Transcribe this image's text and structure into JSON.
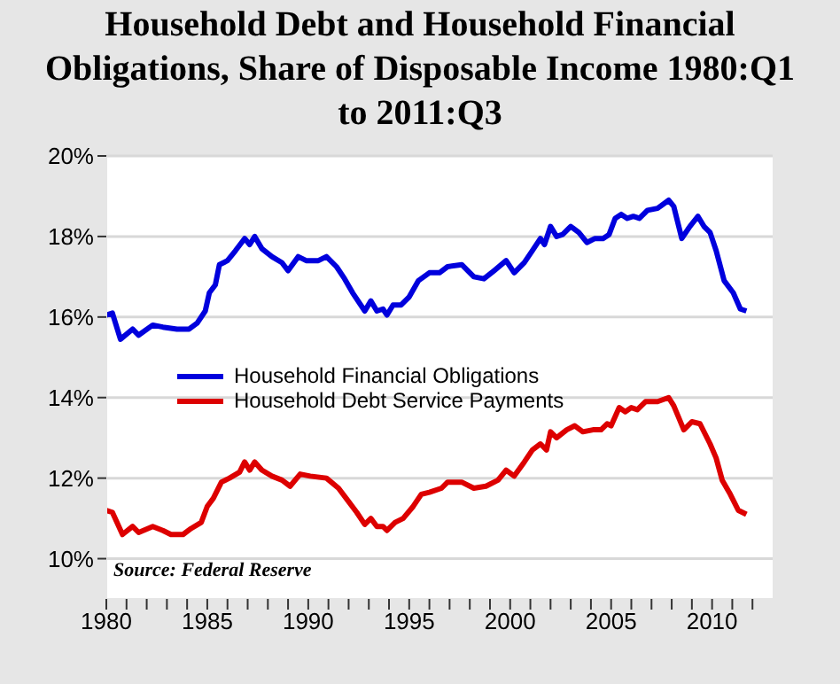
{
  "chart_data": {
    "type": "line",
    "title": "Household Debt and Household Financial Obligations, Share of Disposable Income 1980:Q1 to 2011:Q3",
    "xlim": [
      1980,
      2013
    ],
    "xticks": [
      1980,
      {
        "value": 1981,
        "label": null
      },
      {
        "value": 1982,
        "label": null
      },
      {
        "value": 1983,
        "label": null
      },
      {
        "value": 1984,
        "label": null
      },
      1985,
      {
        "value": 1986,
        "label": null
      },
      {
        "value": 1987,
        "label": null
      },
      {
        "value": 1988,
        "label": null
      },
      {
        "value": 1989,
        "label": null
      },
      1990,
      {
        "value": 1991,
        "label": null
      },
      {
        "value": 1992,
        "label": null
      },
      {
        "value": 1993,
        "label": null
      },
      {
        "value": 1994,
        "label": null
      },
      1995,
      {
        "value": 1996,
        "label": null
      },
      {
        "value": 1997,
        "label": null
      },
      {
        "value": 1998,
        "label": null
      },
      {
        "value": 1999,
        "label": null
      },
      2000,
      {
        "value": 2001,
        "label": null
      },
      {
        "value": 2002,
        "label": null
      },
      {
        "value": 2003,
        "label": null
      },
      {
        "value": 2004,
        "label": null
      },
      2005,
      {
        "value": 2006,
        "label": null
      },
      {
        "value": 2007,
        "label": null
      },
      {
        "value": 2008,
        "label": null
      },
      {
        "value": 2009,
        "label": null
      },
      2010,
      {
        "value": 2011,
        "label": null
      },
      {
        "value": 2012,
        "label": null
      }
    ],
    "ylim": [
      9,
      20
    ],
    "yticks": [
      {
        "value": 10,
        "label": "10%"
      },
      {
        "value": 12,
        "label": "12%"
      },
      {
        "value": 14,
        "label": "14%"
      },
      {
        "value": 16,
        "label": "16%"
      },
      {
        "value": 18,
        "label": "18%"
      },
      {
        "value": 20,
        "label": "20%"
      }
    ],
    "grid": "y",
    "legend": "left",
    "marker": "none",
    "line_style": "solid",
    "annotations": [
      "Source: Federal Reserve"
    ],
    "series": [
      {
        "name": "Household Financial Obligations",
        "color": "#0000dd",
        "x": [
          1980,
          1980.3,
          1980.7,
          1981.3,
          1981.6,
          1982.3,
          1982.8,
          1983.5,
          1984.1,
          1984.5,
          1984.9,
          1985.1,
          1985.4,
          1985.6,
          1986.0,
          1986.4,
          1986.85,
          1987.1,
          1987.35,
          1987.7,
          1988.2,
          1988.7,
          1989.0,
          1989.5,
          1989.9,
          1990.5,
          1990.9,
          1991.4,
          1991.8,
          1992.2,
          1992.8,
          1993.1,
          1993.4,
          1993.7,
          1993.9,
          1994.2,
          1994.6,
          1995.0,
          1995.45,
          1996.0,
          1996.5,
          1996.9,
          1997.6,
          1998.2,
          1998.7,
          1999.2,
          1999.8,
          2000.2,
          2000.7,
          2001.1,
          2001.5,
          2001.7,
          2002.0,
          2002.3,
          2002.6,
          2003.0,
          2003.4,
          2003.8,
          2004.2,
          2004.6,
          2004.9,
          2005.2,
          2005.5,
          2005.8,
          2006.1,
          2006.4,
          2006.8,
          2007.3,
          2007.85,
          2008.1,
          2008.5,
          2008.9,
          2009.3,
          2009.6,
          2009.9,
          2010.2,
          2010.6,
          2011.05,
          2011.4,
          2011.7
        ],
        "values": [
          16.05,
          16.1,
          15.45,
          15.7,
          15.55,
          15.8,
          15.75,
          15.7,
          15.7,
          15.85,
          16.15,
          16.6,
          16.8,
          17.3,
          17.4,
          17.65,
          17.95,
          17.8,
          18.0,
          17.7,
          17.5,
          17.35,
          17.15,
          17.5,
          17.4,
          17.4,
          17.5,
          17.25,
          16.95,
          16.6,
          16.15,
          16.4,
          16.15,
          16.2,
          16.05,
          16.3,
          16.3,
          16.5,
          16.9,
          17.1,
          17.1,
          17.25,
          17.3,
          17.0,
          16.95,
          17.15,
          17.4,
          17.1,
          17.35,
          17.65,
          17.95,
          17.8,
          18.25,
          18.0,
          18.05,
          18.25,
          18.1,
          17.85,
          17.95,
          17.95,
          18.05,
          18.45,
          18.55,
          18.45,
          18.5,
          18.45,
          18.65,
          18.7,
          18.9,
          18.75,
          17.95,
          18.25,
          18.5,
          18.25,
          18.1,
          17.65,
          16.9,
          16.6,
          16.2,
          16.15
        ]
      },
      {
        "name": "Household Debt Service Payments",
        "color": "#dd0000",
        "x": [
          1980,
          1980.3,
          1980.8,
          1981.3,
          1981.6,
          1982.3,
          1982.8,
          1983.2,
          1983.8,
          1984.2,
          1984.7,
          1985.0,
          1985.3,
          1985.7,
          1986.1,
          1986.6,
          1986.85,
          1987.1,
          1987.35,
          1987.7,
          1988.2,
          1988.7,
          1989.1,
          1989.6,
          1990.1,
          1990.9,
          1991.5,
          1991.95,
          1992.4,
          1992.8,
          1993.1,
          1993.4,
          1993.7,
          1993.9,
          1994.3,
          1994.7,
          1995.2,
          1995.6,
          1996.0,
          1996.6,
          1996.9,
          1997.6,
          1998.2,
          1998.8,
          1999.4,
          1999.8,
          2000.2,
          2000.7,
          2001.1,
          2001.5,
          2001.8,
          2002.0,
          2002.3,
          2002.8,
          2003.2,
          2003.6,
          2004.1,
          2004.5,
          2004.8,
          2005.0,
          2005.4,
          2005.7,
          2006.0,
          2006.3,
          2006.7,
          2007.3,
          2007.85,
          2008.1,
          2008.6,
          2009.0,
          2009.4,
          2009.9,
          2010.2,
          2010.5,
          2010.9,
          2011.3,
          2011.7
        ],
        "values": [
          11.2,
          11.15,
          10.6,
          10.8,
          10.65,
          10.8,
          10.7,
          10.6,
          10.6,
          10.75,
          10.9,
          11.3,
          11.5,
          11.9,
          12.0,
          12.15,
          12.4,
          12.2,
          12.4,
          12.2,
          12.05,
          11.95,
          11.8,
          12.1,
          12.05,
          12.0,
          11.75,
          11.45,
          11.15,
          10.85,
          11.0,
          10.8,
          10.8,
          10.7,
          10.9,
          11.0,
          11.3,
          11.6,
          11.65,
          11.75,
          11.9,
          11.9,
          11.75,
          11.8,
          11.95,
          12.2,
          12.05,
          12.4,
          12.7,
          12.85,
          12.7,
          13.15,
          13.0,
          13.2,
          13.3,
          13.15,
          13.2,
          13.2,
          13.35,
          13.3,
          13.75,
          13.65,
          13.75,
          13.7,
          13.9,
          13.9,
          14.0,
          13.8,
          13.2,
          13.4,
          13.35,
          12.85,
          12.5,
          11.95,
          11.6,
          11.2,
          11.1
        ]
      }
    ]
  }
}
